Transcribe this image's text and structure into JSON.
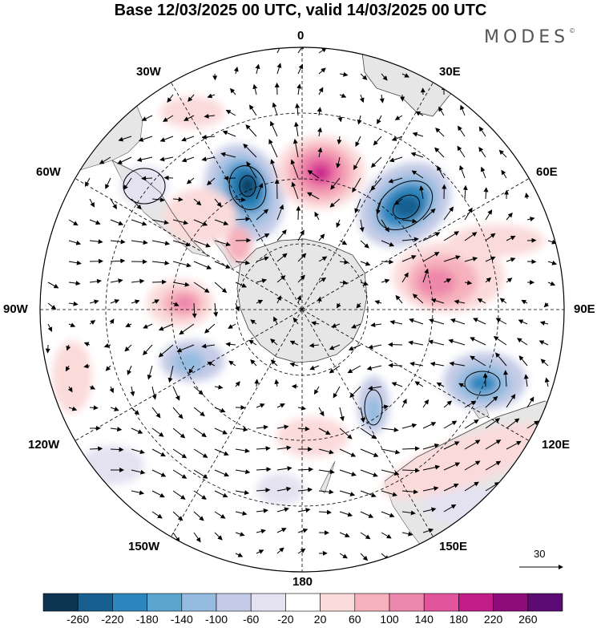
{
  "title": "Base 12/03/2025 00 UTC, valid 14/03/2025 00 UTC",
  "logo": "MODES",
  "logo_mark": "©",
  "longitude_labels": [
    "0",
    "30E",
    "60E",
    "90E",
    "120E",
    "150E",
    "180",
    "150W",
    "120W",
    "90W",
    "60W",
    "30W"
  ],
  "reference_vector": "30",
  "colorbar": {
    "colors": [
      "#0d3450",
      "#165f8f",
      "#2d86bd",
      "#5aa5d0",
      "#95bce0",
      "#c4cbe6",
      "#e4e2f1",
      "#ffffff",
      "#fbdada",
      "#f6b1bc",
      "#ee88ac",
      "#e2549b",
      "#c21c89",
      "#8e0b7b",
      "#5a0a72"
    ],
    "ticks": [
      "-260",
      "-220",
      "-180",
      "-140",
      "-100",
      "-60",
      "-20",
      "20",
      "60",
      "100",
      "140",
      "180",
      "220",
      "260"
    ]
  }
}
